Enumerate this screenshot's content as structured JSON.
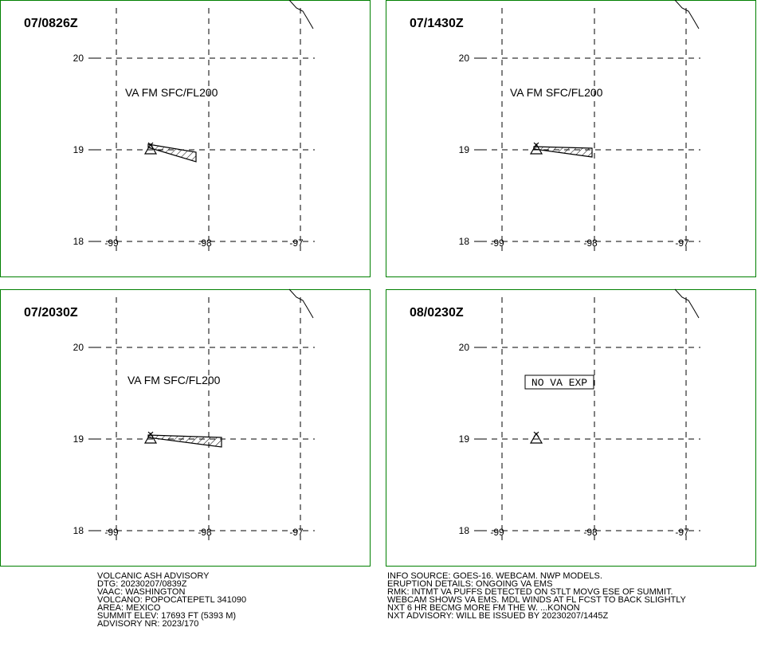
{
  "lat_labels": [
    "20",
    "19",
    "18"
  ],
  "lon_labels": [
    "-99",
    "-98",
    "-97"
  ],
  "panels": [
    {
      "time": "07/0826Z",
      "annotation": "VA FM SFC/FL200"
    },
    {
      "time": "07/1430Z",
      "annotation": "VA FM SFC/FL200"
    },
    {
      "time": "07/2030Z",
      "annotation": "VA FM SFC/FL200"
    },
    {
      "time": "08/0230Z",
      "annotation": "NO VA EXP"
    }
  ],
  "footer_left": [
    "VOLCANIC ASH ADVISORY",
    "DTG: 20230207/0839Z",
    "VAAC: WASHINGTON",
    "VOLCANO: POPOCATEPETL 341090",
    "AREA: MEXICO",
    "SUMMIT ELEV: 17693 FT (5393 M)",
    "ADVISORY NR: 2023/170"
  ],
  "footer_right": [
    "INFO SOURCE: GOES-16. WEBCAM. NWP MODELS.",
    "ERUPTION DETAILS: ONGOING VA EMS",
    "RMK: INTMT VA PUFFS DETECTED ON STLT MOVG ESE OF SUMMIT.",
    "WEBCAM SHOWS VA EMS. MDL WINDS AT FL FCST TO BACK SLIGHTLY",
    "NXT 6 HR BECMG MORE FM THE W. ...KONON",
    "NXT ADVISORY: WILL BE ISSUED BY 20230207/1445Z"
  ]
}
